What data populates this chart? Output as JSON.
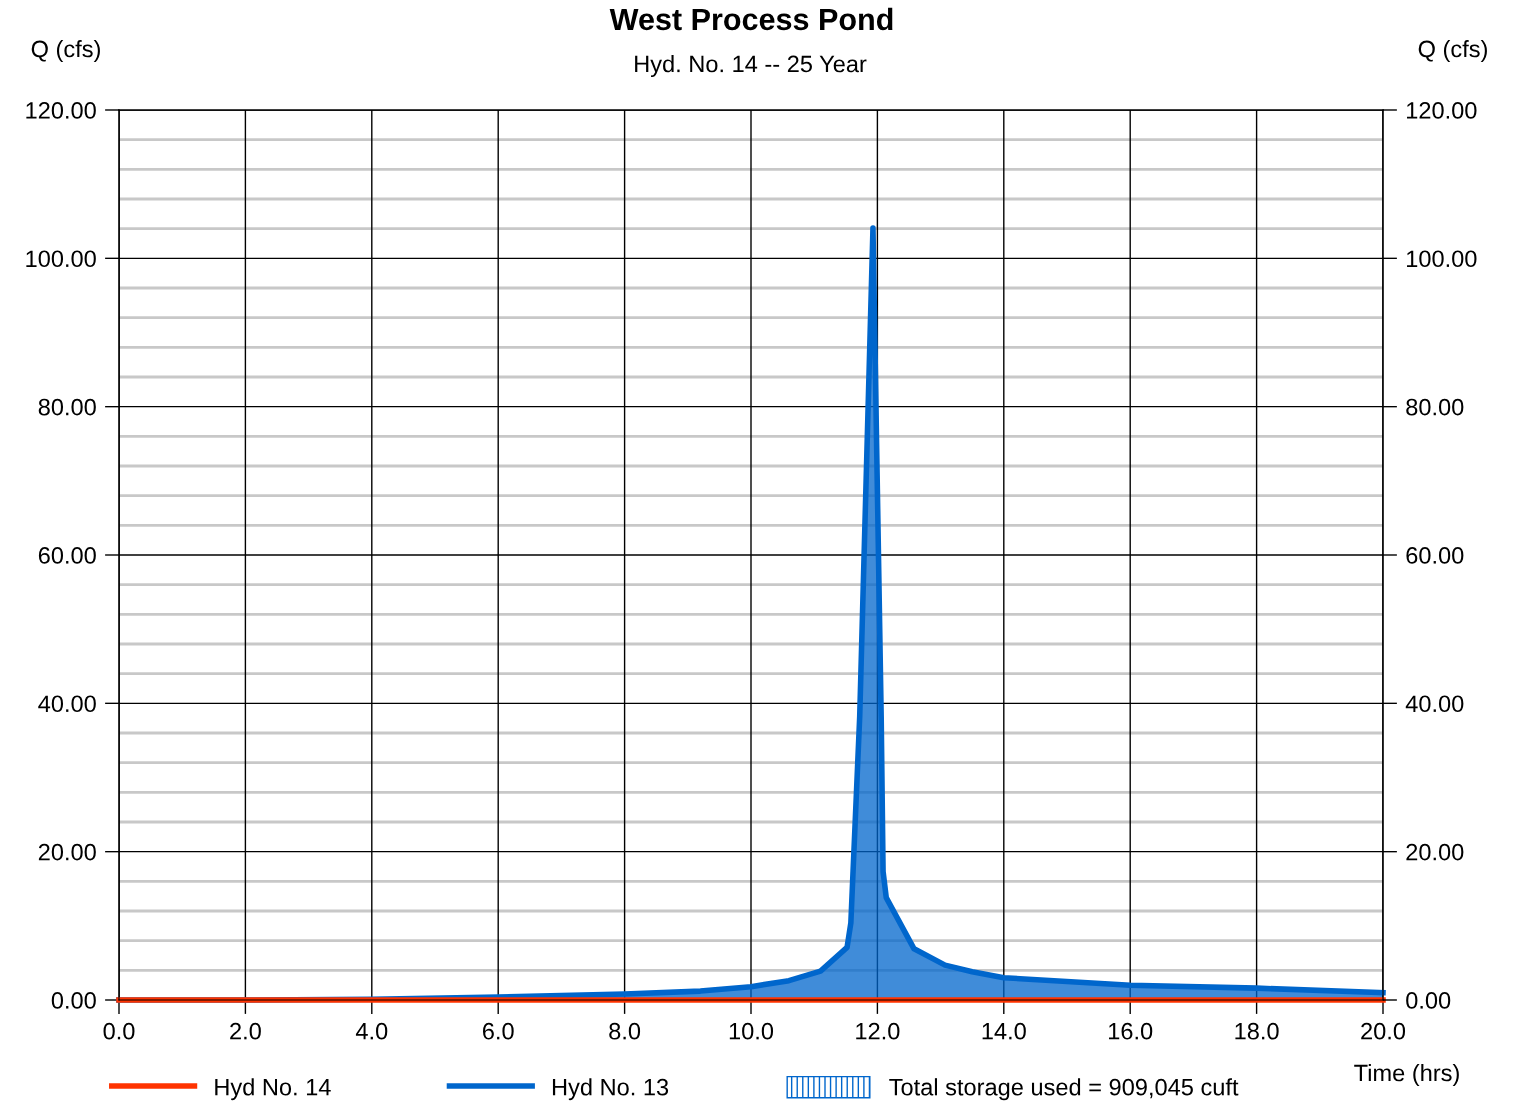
{
  "chart_data": {
    "type": "line",
    "title": "West Process Pond",
    "subtitle": "Hyd. No. 14 -- 25 Year",
    "ylabel": "Q (cfs)",
    "y2label": "Q (cfs)",
    "xlabel": "Time (hrs)",
    "annotations": [
      "Total storage used = 909,045 cuft"
    ],
    "x": [
      0,
      2,
      4,
      6,
      8,
      9.2,
      10,
      10.6,
      11.1,
      11.52,
      11.58,
      11.72,
      11.93,
      12.06,
      12.09,
      12.14,
      12.58,
      13.07,
      13.5,
      14,
      16,
      18,
      20
    ],
    "series": [
      {
        "name": "Hyd No. 14",
        "color": "#ff3300",
        "values": [
          0,
          0,
          0,
          0,
          0,
          0,
          0,
          0,
          0,
          0,
          0,
          0,
          0,
          0,
          0,
          0,
          0,
          0,
          0,
          0,
          0,
          0,
          0
        ]
      },
      {
        "name": "Hyd No. 13",
        "type": "area",
        "color": "#0066cc",
        "values": [
          0,
          0,
          0.1,
          0.4,
          0.8,
          1.2,
          1.8,
          2.6,
          3.9,
          7.1,
          10.4,
          38.2,
          104.1,
          38.2,
          17.3,
          13.8,
          6.9,
          4.7,
          3.8,
          3.0,
          2.0,
          1.6,
          1.0
        ]
      }
    ],
    "xlim": [
      0,
      20
    ],
    "xticks": [
      {
        "value": 0,
        "label": "0.0"
      },
      {
        "value": 2,
        "label": "2.0"
      },
      {
        "value": 4,
        "label": "4.0"
      },
      {
        "value": 6,
        "label": "6.0"
      },
      {
        "value": 8,
        "label": "8.0"
      },
      {
        "value": 10,
        "label": "10.0"
      },
      {
        "value": 12,
        "label": "12.0"
      },
      {
        "value": 14,
        "label": "14.0"
      },
      {
        "value": 16,
        "label": "16.0"
      },
      {
        "value": 18,
        "label": "18.0"
      },
      {
        "value": 20,
        "label": "20.0"
      }
    ],
    "ylim": [
      0,
      120
    ],
    "yticks": [
      {
        "value": 0,
        "label": "0.00"
      },
      {
        "value": 20,
        "label": "20.00"
      },
      {
        "value": 40,
        "label": "40.00"
      },
      {
        "value": 60,
        "label": "60.00"
      },
      {
        "value": 80,
        "label": "80.00"
      },
      {
        "value": 100,
        "label": "100.00"
      },
      {
        "value": 120,
        "label": "120.00"
      }
    ],
    "y2lim": [
      0,
      120
    ],
    "y2ticks": [
      {
        "value": 0,
        "label": "0.00"
      },
      {
        "value": 20,
        "label": "20.00"
      },
      {
        "value": 40,
        "label": "40.00"
      },
      {
        "value": 60,
        "label": "60.00"
      },
      {
        "value": 80,
        "label": "80.00"
      },
      {
        "value": 100,
        "label": "100.00"
      },
      {
        "value": 120,
        "label": "120.00"
      }
    ],
    "grid": true,
    "legend": "bottom",
    "marker": "none",
    "line_style": "solid"
  }
}
